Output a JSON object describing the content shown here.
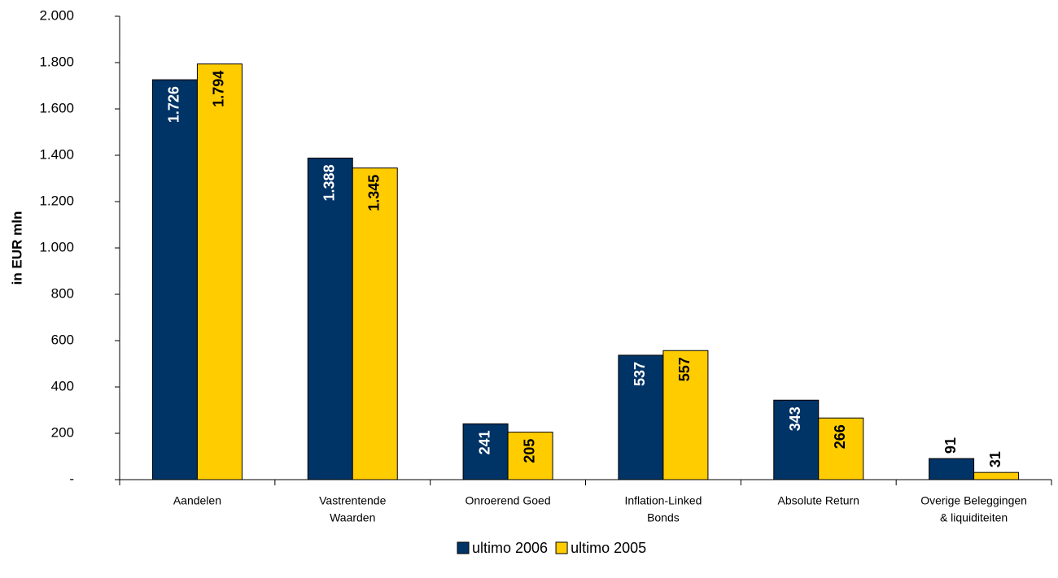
{
  "chart_data": {
    "type": "bar",
    "y_label": "in EUR mln",
    "categories": [
      [
        "Aandelen"
      ],
      [
        "Vastrentende",
        "Waarden"
      ],
      [
        "Onroerend Goed"
      ],
      [
        "Inflation-Linked",
        "Bonds"
      ],
      [
        "Absolute Return"
      ],
      [
        "Overige Beleggingen",
        "& liquiditeiten"
      ]
    ],
    "series": [
      {
        "name": "ultimo 2006",
        "color": "#003366",
        "values": [
          1726,
          1388,
          241,
          537,
          343,
          91
        ],
        "value_labels": [
          "1.726",
          "1.388",
          "241",
          "537",
          "343",
          "91"
        ]
      },
      {
        "name": "ultimo 2005",
        "color": "#ffcc00",
        "values": [
          1794,
          1345,
          205,
          557,
          266,
          31
        ],
        "value_labels": [
          "1.794",
          "1.345",
          "205",
          "557",
          "266",
          "31"
        ]
      }
    ],
    "ylim": [
      0,
      2000
    ],
    "yticks": [
      {
        "value": 0,
        "label": "-"
      },
      200,
      400,
      600,
      800,
      {
        "value": 1000,
        "label": "1.000"
      },
      {
        "value": 1200,
        "label": "1.200"
      },
      {
        "value": 1400,
        "label": "1.400"
      },
      {
        "value": 1600,
        "label": "1.600"
      },
      {
        "value": 1800,
        "label": "1.800"
      },
      {
        "value": 2000,
        "label": "2.000"
      }
    ],
    "grid": false,
    "legend": "bottom"
  }
}
